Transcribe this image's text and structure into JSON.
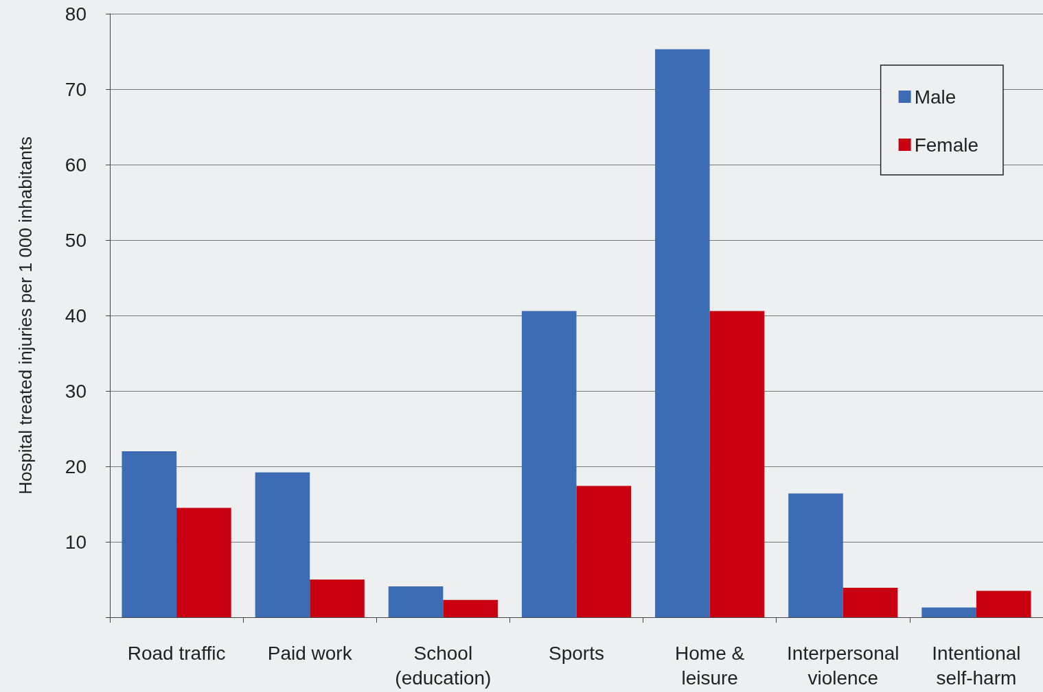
{
  "chart_data": {
    "type": "bar",
    "ylabel": "Hospital treated injuries per 1 000 inhabitants",
    "categories": [
      "Road traffic",
      "Paid work",
      "School\n(education)",
      "Sports",
      "Home &\nleisure",
      "Interpersonal\nviolence",
      "Intentional\nself-harm"
    ],
    "series": [
      {
        "name": "Male",
        "color": "#3c6cb4",
        "values": [
          22.0,
          19.2,
          4.1,
          40.6,
          75.3,
          16.4,
          1.3
        ]
      },
      {
        "name": "Female",
        "color": "#c80011",
        "values": [
          14.5,
          5.0,
          2.3,
          17.4,
          40.6,
          3.9,
          3.5
        ]
      }
    ],
    "ylim": [
      0,
      80
    ],
    "yticks": [
      {
        "value": 0,
        "label": null
      },
      10,
      20,
      30,
      40,
      50,
      60,
      70,
      80
    ],
    "grid": "y",
    "legend": "top right"
  }
}
